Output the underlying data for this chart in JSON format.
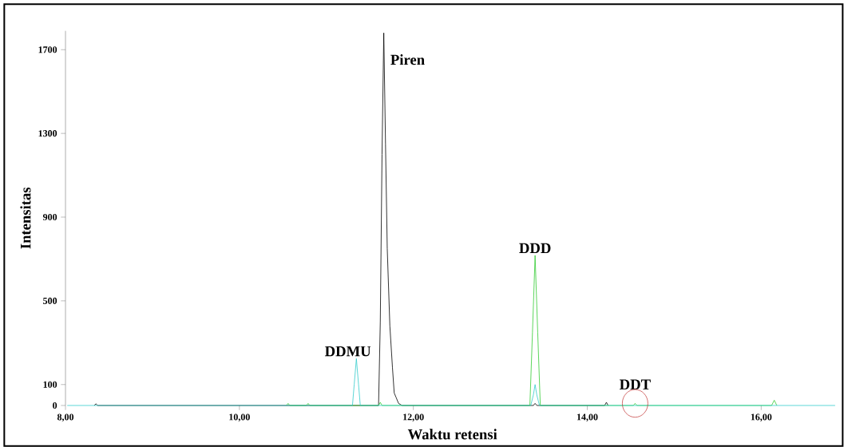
{
  "chart_data": {
    "type": "line",
    "xlabel": "Waktu retensi",
    "ylabel": "Intensitas",
    "xlim": [
      8,
      16.9
    ],
    "ylim": [
      0,
      1790
    ],
    "xticks": [
      {
        "value": 8,
        "label": "8,00"
      },
      {
        "value": 10,
        "label": "10,00"
      },
      {
        "value": 12,
        "label": "12,00"
      },
      {
        "value": 14,
        "label": "14,00"
      },
      {
        "value": 16,
        "label": "16,00"
      }
    ],
    "yticks": [
      0,
      100,
      500,
      900,
      1300,
      1700
    ],
    "grid": false,
    "marker": "none",
    "line_style": "solid",
    "series": [
      {
        "color": "#000000",
        "x": [
          8.33,
          8.35,
          8.37,
          11.6,
          11.62,
          11.64,
          11.66,
          11.68,
          11.7,
          11.73,
          11.76,
          11.78,
          11.8,
          11.83,
          11.87,
          13.38,
          13.4,
          13.42,
          14.2,
          14.22,
          14.24
        ],
        "values": [
          0,
          8,
          0,
          0,
          400,
          1200,
          1780,
          1250,
          750,
          380,
          180,
          60,
          40,
          10,
          0,
          0,
          10,
          0,
          0,
          15,
          0
        ]
      },
      {
        "color": "#33cc33",
        "x": [
          10.54,
          10.56,
          10.58,
          10.77,
          10.79,
          10.81,
          11.6,
          11.62,
          11.64,
          13.34,
          13.37,
          13.4,
          13.43,
          13.46,
          14.53,
          14.55,
          14.57,
          16.12,
          16.15,
          16.18
        ],
        "values": [
          0,
          10,
          0,
          0,
          10,
          0,
          0,
          15,
          0,
          0,
          350,
          717,
          350,
          0,
          0,
          10,
          0,
          0,
          25,
          0
        ]
      },
      {
        "color": "#33cccc",
        "x": [
          8.02,
          11.3,
          11.32,
          11.345,
          11.37,
          11.39,
          13.35,
          13.38,
          13.4,
          13.42,
          13.45,
          16.85
        ],
        "values": [
          0,
          0,
          100,
          224,
          100,
          0,
          0,
          50,
          100,
          50,
          0,
          0
        ]
      }
    ],
    "annotations": [
      {
        "text": "Piren",
        "x": 11.66,
        "y": 1780
      },
      {
        "text": "DDMU",
        "x": 11.345,
        "y": 224
      },
      {
        "text": "DDD",
        "x": 13.4,
        "y": 717
      },
      {
        "text": "DDT",
        "x": 14.55,
        "y": 10
      }
    ]
  }
}
